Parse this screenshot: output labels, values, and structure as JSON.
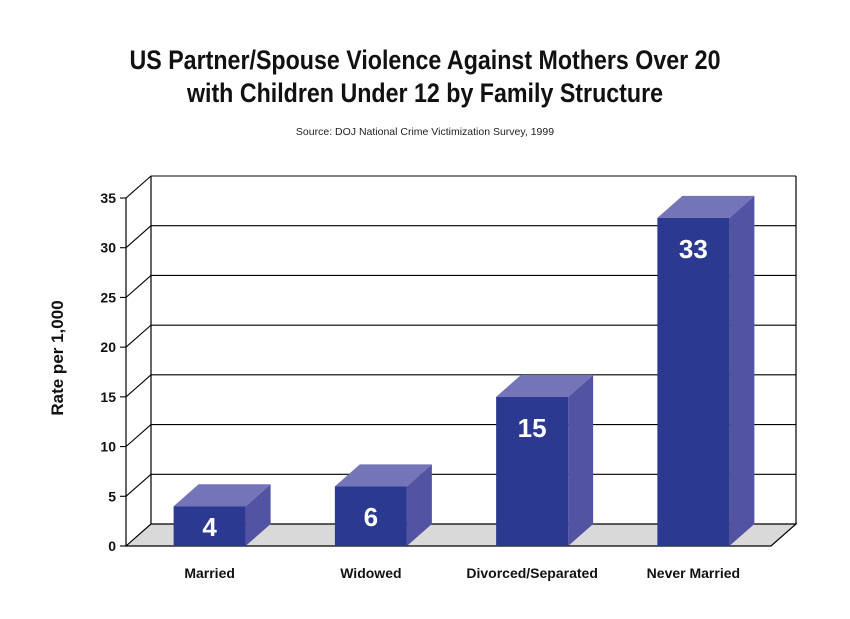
{
  "chart_data": {
    "type": "bar",
    "title_lines": [
      "US Partner/Spouse Violence Against Mothers Over 20",
      "with Children Under 12 by Family Structure"
    ],
    "subtitle": "Source:  DOJ National Crime Victimization Survey, 1999",
    "xlabel": "",
    "ylabel": "Rate per 1,000",
    "categories": [
      "Married",
      "Widowed",
      "Divorced/Separated",
      "Never Married"
    ],
    "values": [
      4,
      6,
      15,
      33
    ],
    "data_labels": [
      "4",
      "6",
      "15",
      "33"
    ],
    "ylim": [
      0,
      35
    ],
    "yticks": [
      0,
      5,
      10,
      15,
      20,
      25,
      30,
      35
    ],
    "grid": true,
    "style": "3d",
    "colors": {
      "bar_front": "#2b3990",
      "bar_top": "#7474b8",
      "bar_side": "#5353a3",
      "floor": "#d9d9d9"
    }
  }
}
